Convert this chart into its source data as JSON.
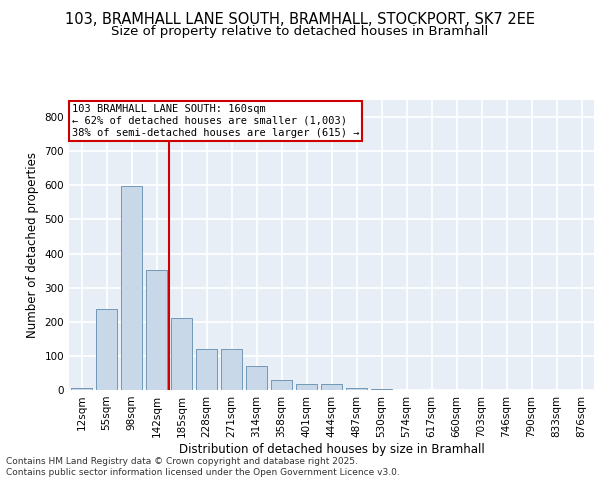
{
  "title_line1": "103, BRAMHALL LANE SOUTH, BRAMHALL, STOCKPORT, SK7 2EE",
  "title_line2": "Size of property relative to detached houses in Bramhall",
  "xlabel": "Distribution of detached houses by size in Bramhall",
  "ylabel": "Number of detached properties",
  "categories": [
    "12sqm",
    "55sqm",
    "98sqm",
    "142sqm",
    "185sqm",
    "228sqm",
    "271sqm",
    "314sqm",
    "358sqm",
    "401sqm",
    "444sqm",
    "487sqm",
    "530sqm",
    "574sqm",
    "617sqm",
    "660sqm",
    "703sqm",
    "746sqm",
    "790sqm",
    "833sqm",
    "876sqm"
  ],
  "values": [
    5,
    237,
    597,
    352,
    210,
    120,
    120,
    70,
    30,
    18,
    18,
    5,
    3,
    0,
    0,
    0,
    0,
    0,
    0,
    0,
    0
  ],
  "bar_color": "#c8d8e8",
  "bar_edge_color": "#7098b8",
  "vline_x": 3.5,
  "vline_color": "#cc0000",
  "annotation_text": "103 BRAMHALL LANE SOUTH: 160sqm\n← 62% of detached houses are smaller (1,003)\n38% of semi-detached houses are larger (615) →",
  "annotation_box_color": "#ffffff",
  "annotation_box_edge": "#cc0000",
  "ylim": [
    0,
    850
  ],
  "yticks": [
    0,
    100,
    200,
    300,
    400,
    500,
    600,
    700,
    800
  ],
  "fig_bg": "#ffffff",
  "plot_bg": "#e8eef5",
  "grid_color": "#ffffff",
  "footer_text": "Contains HM Land Registry data © Crown copyright and database right 2025.\nContains public sector information licensed under the Open Government Licence v3.0.",
  "title_fontsize": 10.5,
  "subtitle_fontsize": 9.5,
  "axis_label_fontsize": 8.5,
  "tick_fontsize": 7.5,
  "annotation_fontsize": 7.5,
  "footer_fontsize": 6.5
}
